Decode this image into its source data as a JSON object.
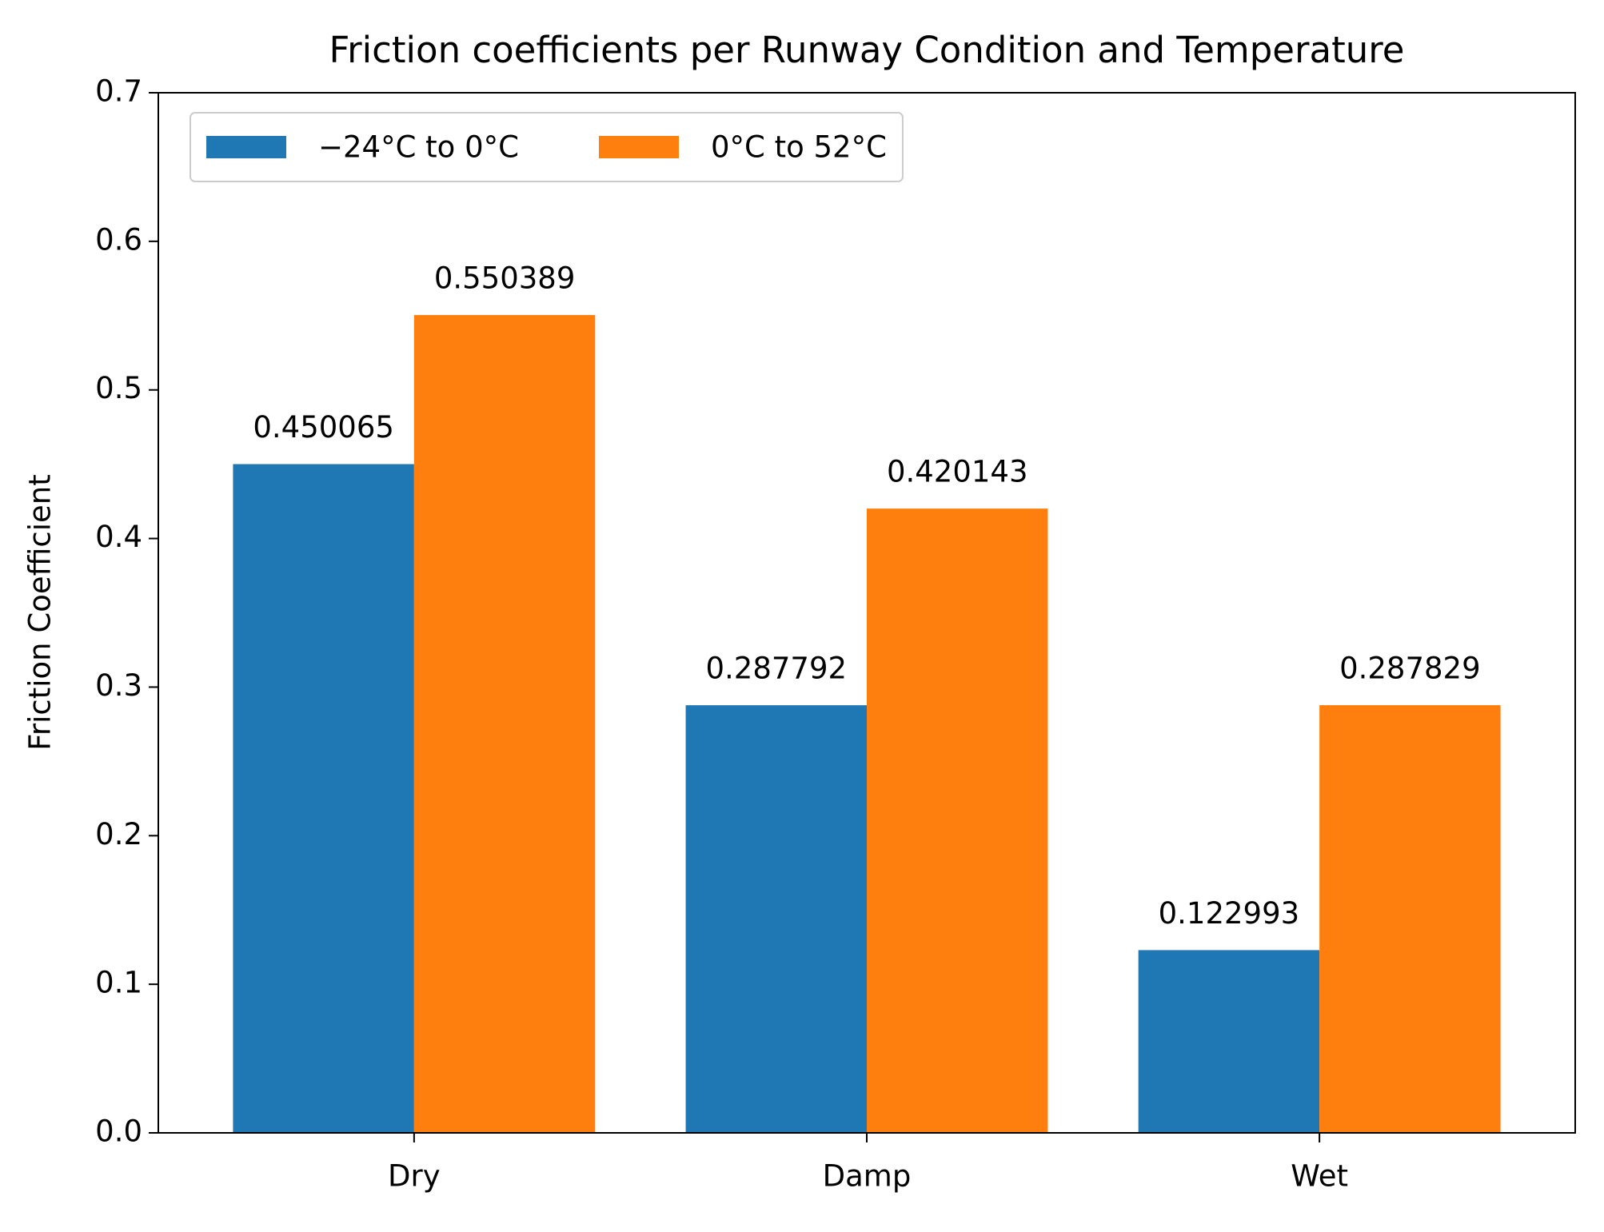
{
  "chart_data": {
    "type": "bar",
    "title": "Friction coefficients per Runway Condition and Temperature",
    "y_label": "Friction Coefficient",
    "categories": [
      "Dry",
      "Damp",
      "Wet"
    ],
    "series": [
      {
        "name": "−24°C to 0°C",
        "color": "#1f77b4",
        "values": [
          0.450065,
          0.287792,
          0.122993
        ]
      },
      {
        "name": "0°C to 52°C",
        "color": "#ff7f0e",
        "values": [
          0.550389,
          0.420143,
          0.287829
        ]
      }
    ],
    "ylim": [
      0,
      0.7
    ],
    "yticks": [
      {
        "value": 0,
        "label": "0.0"
      },
      0.1,
      0.2,
      0.3,
      0.4,
      0.5,
      0.6,
      0.7
    ],
    "legend": "upper left",
    "grid": false
  }
}
